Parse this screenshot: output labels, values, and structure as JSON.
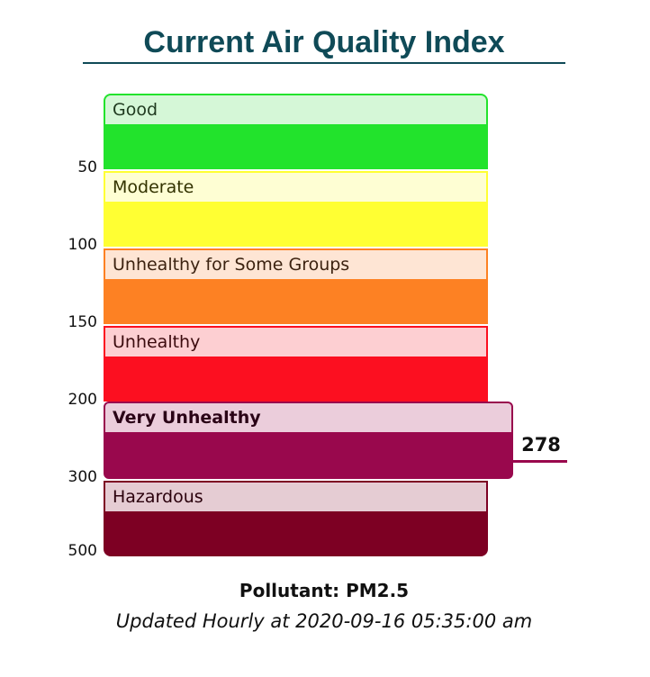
{
  "title": "Current Air Quality Index",
  "chart_data": {
    "type": "bar",
    "categories": [
      "Good",
      "Moderate",
      "Unhealthy for Some Groups",
      "Unhealthy",
      "Very Unhealthy",
      "Hazardous"
    ],
    "bands": [
      {
        "label": "Good",
        "min": 0,
        "max": 50,
        "color": "#22e32c",
        "label_bg": "#d5f7d7",
        "border": "#22e32c",
        "text": "#1f3a1f"
      },
      {
        "label": "Moderate",
        "min": 51,
        "max": 100,
        "color": "#ffff33",
        "label_bg": "#fefed3",
        "border": "#ffff33",
        "text": "#333300"
      },
      {
        "label": "Unhealthy for Some Groups",
        "min": 101,
        "max": 150,
        "color": "#fd8123",
        "label_bg": "#fee5d4",
        "border": "#fd8123",
        "text": "#3b2210"
      },
      {
        "label": "Unhealthy",
        "min": 151,
        "max": 200,
        "color": "#fc0f20",
        "label_bg": "#fdcfd2",
        "border": "#fc0f20",
        "text": "#3b0a0d"
      },
      {
        "label": "Very Unhealthy",
        "min": 201,
        "max": 300,
        "color": "#99084d",
        "label_bg": "#ebcddb",
        "border": "#99084d",
        "text": "#2a0216"
      },
      {
        "label": "Hazardous",
        "min": 301,
        "max": 500,
        "color": "#7d0023",
        "label_bg": "#e5ccd3",
        "border": "#7d0023",
        "text": "#2a000c"
      }
    ],
    "ticks": [
      "50",
      "100",
      "150",
      "200",
      "300",
      "500"
    ],
    "current_value": "278",
    "current_category": "Very Unhealthy",
    "marker_color": "#99084d"
  },
  "pollutant": "Pollutant: PM2.5",
  "updated": "Updated Hourly at 2020-09-16 05:35:00 am"
}
